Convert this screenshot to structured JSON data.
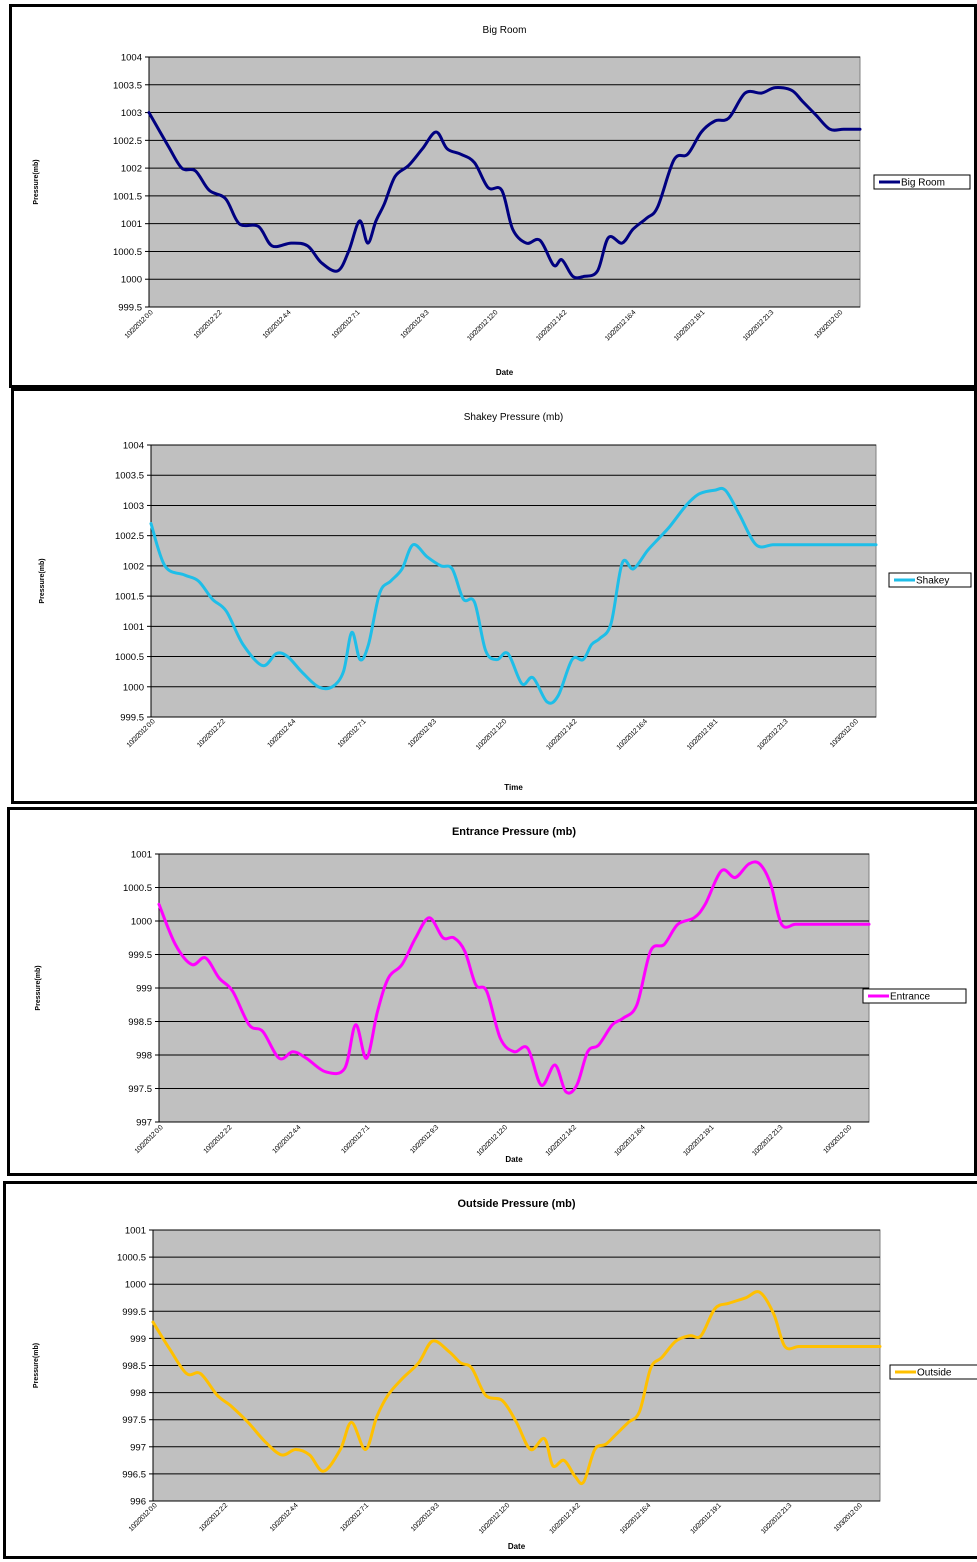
{
  "chart_data": [
    {
      "type": "line",
      "title": "Big Room",
      "title_bold": false,
      "xlabel": "Date",
      "ylabel": "Pressure(mb)",
      "ylim": [
        999.5,
        1004
      ],
      "ytick_step": 0.5,
      "ytick_labels": [
        "999.5",
        "1000",
        "1000.5",
        "1001",
        "1001.5",
        "1002",
        "1002.5",
        "1003",
        "1003.5",
        "1004"
      ],
      "xtick_labels": [
        "10/2/2012 0:0",
        "10/2/2012 2:2",
        "10/2/2012 4:4",
        "10/2/2012 7:1",
        "10/2/2012 9:3",
        "10/2/2012 12:0",
        "10/2/2012 14:2",
        "10/2/2012 16:4",
        "10/2/2012 19:1",
        "10/2/2012 21:3",
        "10/3/2012 0:0"
      ],
      "x_span_hours": [
        0,
        26
      ],
      "grid": true,
      "legend_position": "right",
      "plot_bg": "#c0c0c0",
      "series": [
        {
          "name": "Big Room",
          "color": "#000080",
          "x": [
            0,
            0.7,
            1.2,
            1.7,
            2.2,
            2.8,
            3.3,
            4,
            4.5,
            5.2,
            5.8,
            6.3,
            6.9,
            7.3,
            7.7,
            8,
            8.3,
            8.6,
            9,
            9.5,
            10,
            10.5,
            10.9,
            11.4,
            11.9,
            12.4,
            12.9,
            13.3,
            13.8,
            14.3,
            14.8,
            15.1,
            15.5,
            15.9,
            16.4,
            16.8,
            17.3,
            17.7,
            18.2,
            18.6,
            19.2,
            19.7,
            20.2,
            20.7,
            21.2,
            21.8,
            22.4,
            22.9,
            23.5,
            23.9,
            24.4,
            24.9,
            25.4,
            26
          ],
          "y": [
            1003,
            1002.4,
            1002,
            1001.95,
            1001.6,
            1001.45,
            1001,
            1000.95,
            1000.6,
            1000.65,
            1000.6,
            1000.3,
            1000.15,
            1000.5,
            1001.05,
            1000.65,
            1001.05,
            1001.35,
            1001.85,
            1002.05,
            1002.35,
            1002.65,
            1002.35,
            1002.25,
            1002.1,
            1001.65,
            1001.6,
            1000.9,
            1000.65,
            1000.7,
            1000.25,
            1000.35,
            1000.05,
            1000.05,
            1000.15,
            1000.75,
            1000.65,
            1000.9,
            1001.1,
            1001.3,
            1002.15,
            1002.25,
            1002.65,
            1002.85,
            1002.9,
            1003.35,
            1003.35,
            1003.45,
            1003.4,
            1003.2,
            1002.95,
            1002.7,
            1002.7,
            1002.7
          ]
        }
      ]
    },
    {
      "type": "line",
      "title": "Shakey Pressure (mb)",
      "title_bold": false,
      "xlabel": "Time",
      "ylabel": "Pressure(mb)",
      "ylim": [
        999.5,
        1004
      ],
      "ytick_step": 0.5,
      "ytick_labels": [
        "999.5",
        "1000",
        "1000.5",
        "1001",
        "1001.5",
        "1002",
        "1002.5",
        "1003",
        "1003.5",
        "1004"
      ],
      "xtick_labels": [
        "10/2/2012 0:0",
        "10/2/2012 2:2",
        "10/2/2012 4:4",
        "10/2/2012 7:1",
        "10/2/2012 9:3",
        "10/2/2012 12:0",
        "10/2/2012 14:2",
        "10/2/2012 16:4",
        "10/2/2012 19:1",
        "10/2/2012 21:3",
        "10/3/2012 0:0"
      ],
      "x_span_hours": [
        0,
        26
      ],
      "grid": true,
      "legend_position": "right",
      "plot_bg": "#c0c0c0",
      "series": [
        {
          "name": "Shakey",
          "color": "#1ebee8",
          "x": [
            0,
            0.5,
            1.2,
            1.7,
            2.2,
            2.7,
            3.3,
            4,
            4.5,
            4.9,
            5.4,
            6,
            6.5,
            6.9,
            7.2,
            7.5,
            7.8,
            8.2,
            8.6,
            9,
            9.4,
            9.9,
            10.4,
            10.8,
            11.2,
            11.6,
            12,
            12.4,
            12.8,
            13.3,
            13.7,
            14.2,
            14.6,
            15.1,
            15.5,
            15.8,
            16.1,
            16.5,
            16.9,
            17.3,
            17.8,
            18.2,
            18.6,
            19.1,
            19.4,
            19.7,
            20.2,
            20.6,
            21.1,
            21.7,
            22.3,
            22.7,
            23.2,
            23.6,
            24.1,
            24.5,
            25,
            25.4,
            26
          ],
          "y": [
            1002.7,
            1002,
            1001.85,
            1001.75,
            1001.45,
            1001.25,
            1000.7,
            1000.35,
            1000.55,
            1000.5,
            1000.25,
            1000,
            1000,
            1000.25,
            1000.9,
            1000.45,
            1000.7,
            1001.55,
            1001.75,
            1001.95,
            1002.35,
            1002.15,
            1002,
            1001.95,
            1001.45,
            1001.4,
            1000.6,
            1000.45,
            1000.55,
            1000.05,
            1000.15,
            999.75,
            999.85,
            1000.45,
            1000.45,
            1000.7,
            1000.8,
            1001.05,
            1002.05,
            1001.95,
            1002.25,
            1002.45,
            1002.65,
            1002.95,
            1003.1,
            1003.2,
            1003.25,
            1003.25,
            1002.85,
            1002.35,
            1002.35,
            1002.35,
            1002.35,
            1002.35,
            1002.35,
            1002.35,
            1002.35,
            1002.35,
            1002.35
          ]
        }
      ]
    },
    {
      "type": "line",
      "title": "Entrance Pressure (mb)",
      "title_bold": true,
      "xlabel": "Date",
      "ylabel": "Pressure(mb)",
      "ylim": [
        997,
        1001
      ],
      "ytick_step": 0.5,
      "ytick_labels": [
        "997",
        "997.5",
        "998",
        "998.5",
        "999",
        "999.5",
        "1000",
        "1000.5",
        "1001"
      ],
      "xtick_labels": [
        "10/2/2012 0:0",
        "10/2/2012 2:2",
        "10/2/2012 4:4",
        "10/2/2012 7:1",
        "10/2/2012 9:3",
        "10/2/2012 12:0",
        "10/2/2012 14:2",
        "10/2/2012 16:4",
        "10/2/2012 19:1",
        "10/2/2012 21:3",
        "10/3/2012 0:0"
      ],
      "x_span_hours": [
        0,
        26
      ],
      "grid": true,
      "legend_position": "right",
      "plot_bg": "#c0c0c0",
      "series": [
        {
          "name": "Entrance",
          "color": "#ff00ff",
          "x": [
            0,
            0.6,
            1.2,
            1.7,
            2.2,
            2.7,
            3.3,
            3.8,
            4.4,
            4.9,
            5.4,
            6.1,
            6.8,
            7.2,
            7.6,
            8,
            8.4,
            8.9,
            9.4,
            9.9,
            10.4,
            10.8,
            11.2,
            11.6,
            12,
            12.5,
            13,
            13.5,
            14,
            14.5,
            14.9,
            15.3,
            15.7,
            16.1,
            16.6,
            17,
            17.5,
            18,
            18.5,
            19,
            19.6,
            20,
            20.6,
            21.1,
            21.6,
            22,
            22.4,
            22.8,
            23.3,
            23.8,
            24.2,
            24.6,
            25,
            25.5,
            26
          ],
          "y": [
            1000.25,
            999.65,
            999.35,
            999.45,
            999.15,
            998.95,
            998.45,
            998.35,
            997.95,
            998.05,
            997.95,
            997.75,
            997.8,
            998.45,
            997.95,
            998.65,
            999.15,
            999.35,
            999.75,
            1000.05,
            999.75,
            999.75,
            999.55,
            999.05,
            998.95,
            998.25,
            998.05,
            998.1,
            997.55,
            997.85,
            997.45,
            997.55,
            998.05,
            998.15,
            998.45,
            998.55,
            998.75,
            999.55,
            999.65,
            999.95,
            1000.05,
            1000.25,
            1000.75,
            1000.65,
            1000.85,
            1000.85,
            1000.55,
            999.95,
            999.95,
            999.95,
            999.95,
            999.95,
            999.95,
            999.95,
            999.95
          ]
        }
      ]
    },
    {
      "type": "line",
      "title": "Outside Pressure (mb)",
      "title_bold": true,
      "xlabel": "Date",
      "ylabel": "Pressure(mb)",
      "ylim": [
        996,
        1001
      ],
      "ytick_step": 0.5,
      "ytick_labels": [
        "996",
        "996.5",
        "997",
        "997.5",
        "998",
        "998.5",
        "999",
        "999.5",
        "1000",
        "1000.5",
        "1001"
      ],
      "xtick_labels": [
        "10/2/2012 0:0",
        "10/2/2012 2:2",
        "10/2/2012 4:4",
        "10/2/2012 7:1",
        "10/2/2012 9:3",
        "10/2/2012 12:0",
        "10/2/2012 14:2",
        "10/2/2012 16:4",
        "10/2/2012 19:1",
        "10/2/2012 21:3",
        "10/3/2012 0:0"
      ],
      "x_span_hours": [
        0,
        26
      ],
      "grid": true,
      "legend_position": "right",
      "plot_bg": "#c0c0c0",
      "series": [
        {
          "name": "Outside",
          "color": "#ffc000",
          "x": [
            0,
            0.6,
            1.2,
            1.7,
            2.3,
            2.8,
            3.4,
            4,
            4.6,
            5.1,
            5.6,
            6.1,
            6.7,
            7.1,
            7.6,
            8,
            8.4,
            8.9,
            9.5,
            10,
            10.6,
            11,
            11.4,
            11.9,
            12.5,
            13,
            13.5,
            14,
            14.3,
            14.7,
            15.1,
            15.4,
            15.8,
            16.2,
            16.6,
            17,
            17.4,
            17.8,
            18.2,
            18.7,
            19.2,
            19.6,
            20.1,
            20.6,
            21.2,
            21.7,
            22.2,
            22.6,
            23.1,
            23.7,
            24.2,
            24.6,
            25,
            25.5,
            26
          ],
          "y": [
            999.3,
            998.8,
            998.35,
            998.35,
            997.95,
            997.75,
            997.45,
            997.1,
            996.85,
            996.95,
            996.85,
            996.55,
            996.95,
            997.45,
            996.95,
            997.55,
            997.95,
            998.25,
            998.55,
            998.95,
            998.75,
            998.55,
            998.45,
            997.95,
            997.85,
            997.45,
            996.95,
            997.15,
            996.65,
            996.75,
            996.45,
            996.35,
            996.95,
            997.05,
            997.25,
            997.45,
            997.65,
            998.45,
            998.65,
            998.95,
            999.05,
            999.05,
            999.55,
            999.65,
            999.75,
            999.85,
            999.45,
            998.85,
            998.85,
            998.85,
            998.85,
            998.85,
            998.85,
            998.85,
            998.85
          ]
        }
      ]
    }
  ]
}
